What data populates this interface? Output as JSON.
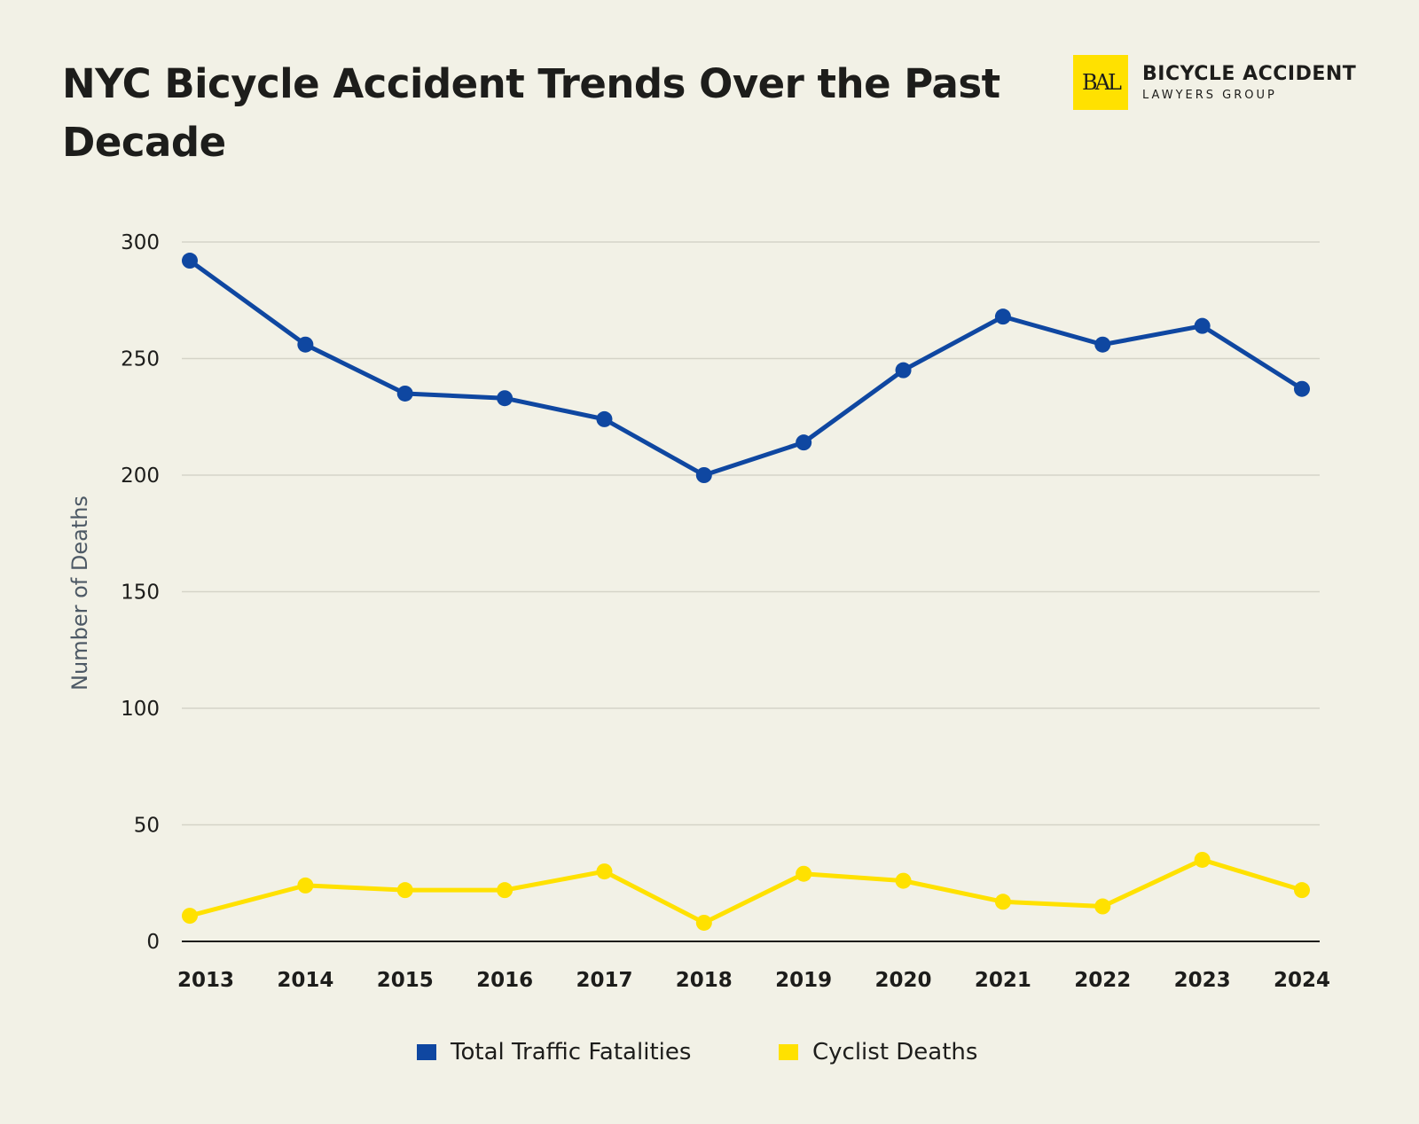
{
  "chart_data": {
    "type": "line",
    "title": "NYC Bicycle Accident Trends Over the Past Decade",
    "xlabel": "",
    "ylabel": "Number of Deaths",
    "ylim": [
      0,
      300
    ],
    "yticks": [
      0,
      50,
      100,
      150,
      200,
      250,
      300
    ],
    "grid": true,
    "legend_position": "bottom",
    "categories": [
      "2013",
      "2014",
      "2015",
      "2016",
      "2017",
      "2018",
      "2019",
      "2020",
      "2021",
      "2022",
      "2023",
      "2024"
    ],
    "series": [
      {
        "name": "Total Traffic Fatalities",
        "color": "#0f47a1",
        "values": [
          292,
          256,
          235,
          233,
          224,
          200,
          214,
          245,
          268,
          256,
          264,
          237
        ]
      },
      {
        "name": "Cyclist Deaths",
        "color": "#ffe100",
        "values": [
          11,
          24,
          22,
          22,
          30,
          8,
          29,
          26,
          17,
          15,
          35,
          22
        ]
      }
    ]
  },
  "logo": {
    "monogram": "BAL",
    "main": "BICYCLE ACCIDENT",
    "sub": "LAWYERS GROUP"
  }
}
